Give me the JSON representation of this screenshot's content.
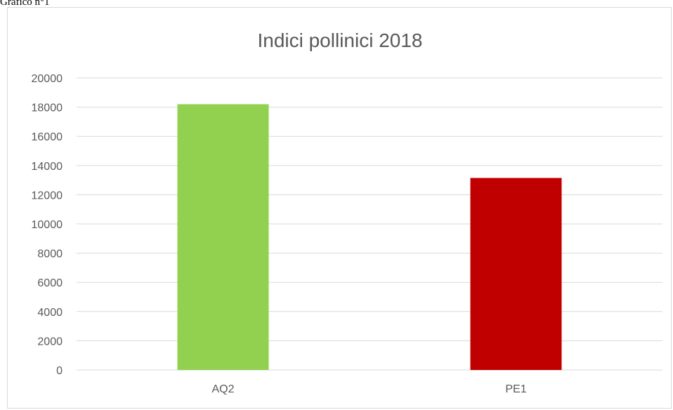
{
  "caption": "Grafico n°1",
  "chart_data": {
    "type": "bar",
    "title": "Indici pollinici 2018",
    "xlabel": "",
    "ylabel": "",
    "categories": [
      "AQ2",
      "PE1"
    ],
    "values": [
      18200,
      13150
    ],
    "colors": [
      "#92d050",
      "#c00000"
    ],
    "ylim": [
      0,
      20000
    ],
    "yticks": [
      0,
      2000,
      4000,
      6000,
      8000,
      10000,
      12000,
      14000,
      16000,
      18000,
      20000
    ],
    "grid": true,
    "legend": "none"
  }
}
